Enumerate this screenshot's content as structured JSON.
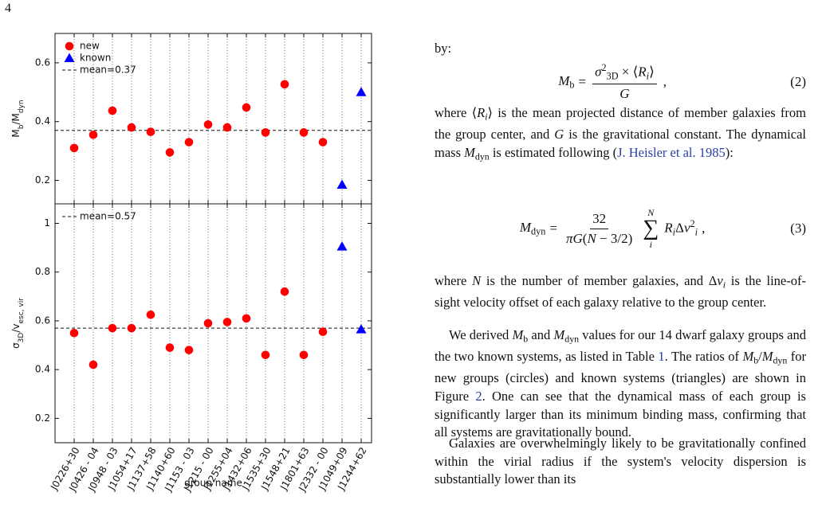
{
  "page_number": "4",
  "chart_data": [
    {
      "type": "scatter",
      "ylabel_parts": [
        {
          "t": "M"
        },
        {
          "t": "b",
          "s": "sub"
        },
        {
          "t": "/M"
        },
        {
          "t": "dyn",
          "s": "sub"
        }
      ],
      "categories": [
        null,
        null,
        null,
        null,
        null,
        null,
        null,
        null,
        null,
        null,
        null,
        null,
        null,
        null,
        null,
        null
      ],
      "ylim": [
        0.12,
        0.7
      ],
      "yticks": [
        0.2,
        0.4,
        0.6
      ],
      "xgrid": true,
      "legend": "upper left",
      "series": [
        {
          "name": "new",
          "color": "#ff0000",
          "marker": "circle",
          "values": [
            0.31,
            0.355,
            0.437,
            0.38,
            0.365,
            0.295,
            0.33,
            0.39,
            0.38,
            0.448,
            0.363,
            0.527,
            0.363,
            0.33,
            null,
            null
          ]
        },
        {
          "name": "known",
          "color": "#0000ff",
          "marker": "triangle",
          "values": [
            null,
            null,
            null,
            null,
            null,
            null,
            null,
            null,
            null,
            null,
            null,
            null,
            null,
            null,
            0.185,
            0.5
          ]
        }
      ],
      "mean_line": {
        "value": 0.37,
        "label": "mean=0.37"
      }
    },
    {
      "type": "scatter",
      "ylabel_parts": [
        {
          "t": "σ"
        },
        {
          "t": "3D",
          "s": "sub"
        },
        {
          "t": "/v"
        },
        {
          "t": "esc, vir",
          "s": "sub"
        }
      ],
      "xlabel": "group name",
      "categories": [
        "J0226+30",
        "J0426 - 04",
        "J0948 - 03",
        "J1054+17",
        "J1137+58",
        "J1140+60",
        "J1153 - 03",
        "J1215 - 00",
        "J1255+04",
        "J1432+06",
        "J1535+30",
        "J1548+21",
        "J1801+63",
        "J2332 - 00",
        "J1049+09",
        "J1244+62"
      ],
      "ylim": [
        0.1,
        1.08
      ],
      "yticks": [
        0.2,
        0.4,
        0.6,
        0.8,
        1.0
      ],
      "xgrid": true,
      "legend": "upper left",
      "series": [
        {
          "color": "#ff0000",
          "marker": "circle",
          "values": [
            0.55,
            0.42,
            0.57,
            0.57,
            0.625,
            0.49,
            0.48,
            0.59,
            0.595,
            0.61,
            0.46,
            0.72,
            0.46,
            0.555,
            null,
            null
          ]
        },
        {
          "color": "#0000ff",
          "marker": "triangle",
          "values": [
            null,
            null,
            null,
            null,
            null,
            null,
            null,
            null,
            null,
            null,
            null,
            null,
            null,
            null,
            0.905,
            0.565
          ]
        }
      ],
      "mean_line": {
        "value": 0.57,
        "label": "mean=0.57"
      }
    }
  ],
  "text": {
    "by": "by:",
    "eq2": {
      "lhs": [
        {
          "t": "M",
          "s": "i"
        },
        {
          "t": "b",
          "s": "sub"
        }
      ],
      "eq": "=",
      "num": [
        {
          "t": "σ",
          "s": "i"
        },
        {
          "t": "2",
          "s": "sup"
        },
        {
          "t": "3D",
          "s": "sub"
        },
        {
          "t": " × ⟨"
        },
        {
          "t": "R",
          "s": "i"
        },
        {
          "t": "i",
          "s": "isub"
        },
        {
          "t": "⟩"
        }
      ],
      "den": [
        {
          "t": "G",
          "s": "i"
        }
      ],
      "tail": ",",
      "number": "(2)"
    },
    "p1": [
      {
        "t": "where ⟨"
      },
      {
        "t": "R",
        "s": "i"
      },
      {
        "t": "i",
        "s": "isub"
      },
      {
        "t": "⟩ is the mean projected distance of member galaxies from the group center, and "
      },
      {
        "t": "G",
        "s": "i"
      },
      {
        "t": " is the gravitational constant. The dynamical mass "
      },
      {
        "t": "M",
        "s": "i"
      },
      {
        "t": "dyn",
        "s": "sub"
      },
      {
        "t": " is estimated following ("
      },
      {
        "t": "J. Heisler et al. 1985",
        "s": "link"
      },
      {
        "t": "):"
      }
    ],
    "eq3": {
      "lhs": [
        {
          "t": "M",
          "s": "i"
        },
        {
          "t": "dyn",
          "s": "sub"
        }
      ],
      "eq": "=",
      "num": [
        {
          "t": "32"
        }
      ],
      "den": [
        {
          "t": "πG",
          "s": "i"
        },
        {
          "t": "("
        },
        {
          "t": "N",
          "s": "i"
        },
        {
          "t": " − 3/2)"
        }
      ],
      "sum": "∑",
      "sum_top": "N",
      "sum_bottom": "i",
      "body": [
        {
          "t": "R",
          "s": "i"
        },
        {
          "t": "i",
          "s": "isub"
        },
        {
          "t": "Δ"
        },
        {
          "t": "v",
          "s": "i"
        },
        {
          "t": "2",
          "s": "sup"
        },
        {
          "t": "i",
          "s": "isub"
        }
      ],
      "tail": ",",
      "number": "(3)"
    },
    "p2": [
      {
        "t": "where "
      },
      {
        "t": "N",
        "s": "i"
      },
      {
        "t": " is the number of member galaxies, and Δ"
      },
      {
        "t": "v",
        "s": "i"
      },
      {
        "t": "i",
        "s": "isub"
      },
      {
        "t": " is the line-of-sight velocity offset of each galaxy relative to the group center."
      }
    ],
    "p3": [
      {
        "t": "We derived "
      },
      {
        "t": "M",
        "s": "i"
      },
      {
        "t": "b",
        "s": "sub"
      },
      {
        "t": " and "
      },
      {
        "t": "M",
        "s": "i"
      },
      {
        "t": "dyn",
        "s": "sub"
      },
      {
        "t": " values for our 14 dwarf galaxy groups and the two known systems, as listed in Table "
      },
      {
        "t": "1",
        "s": "link"
      },
      {
        "t": ". The ratios of "
      },
      {
        "t": "M",
        "s": "i"
      },
      {
        "t": "b",
        "s": "sub"
      },
      {
        "t": "/"
      },
      {
        "t": "M",
        "s": "i"
      },
      {
        "t": "dyn",
        "s": "sub"
      },
      {
        "t": " for new groups (circles) and known systems (triangles) are shown in Figure "
      },
      {
        "t": "2",
        "s": "link"
      },
      {
        "t": ". One can see that the dynamical mass of each group is significantly larger than its minimum binding mass, confirming that all systems are gravitationally bound."
      }
    ],
    "p4": [
      {
        "t": "Galaxies are overwhelmingly likely to be gravitationally confined within the virial radius if the system's velocity dispersion is substantially lower than its"
      }
    ]
  }
}
